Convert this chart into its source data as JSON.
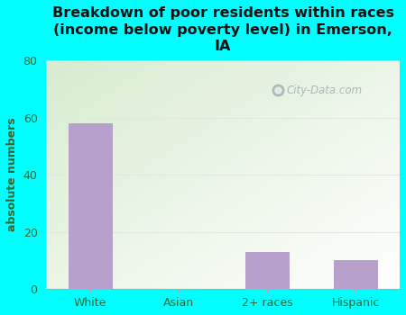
{
  "title": "Breakdown of poor residents within races\n(income below poverty level) in Emerson,\nIA",
  "categories": [
    "White",
    "Asian",
    "2+ races",
    "Hispanic"
  ],
  "values": [
    58,
    0,
    13,
    10
  ],
  "bar_color": "#b8a0cc",
  "ylabel": "absolute numbers",
  "ylim": [
    0,
    80
  ],
  "yticks": [
    0,
    20,
    40,
    60,
    80
  ],
  "bg_color": "#00ffff",
  "plot_bg_color1": "#d8ecd0",
  "plot_bg_color2": "#f8fff8",
  "watermark": "City-Data.com",
  "title_fontsize": 11.5,
  "ylabel_fontsize": 9,
  "tick_fontsize": 9,
  "tick_color": "#336633",
  "title_color": "#111111",
  "grid_color": "#e0e8e0"
}
